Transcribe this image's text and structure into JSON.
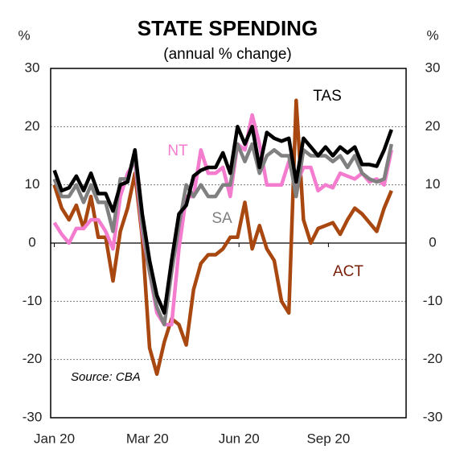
{
  "chart_data": {
    "type": "line",
    "title": "STATE SPENDING",
    "subtitle": "(annual % change)",
    "y_label": "%",
    "y2_label": "%",
    "annotation": "Source: CBA",
    "xlim": [
      -0.5,
      48
    ],
    "xticks": [
      {
        "value": 0,
        "label": "Jan 20"
      },
      {
        "value": 12.7,
        "label": "Mar 20"
      },
      {
        "value": 25.2,
        "label": "Jun 20"
      },
      {
        "value": 37.4,
        "label": "Sep 20"
      }
    ],
    "ylim": [
      -30,
      30
    ],
    "yticks": [
      -30,
      -20,
      -10,
      0,
      10,
      20,
      30
    ],
    "y2lim": [
      -30,
      30
    ],
    "y2ticks": [
      -30,
      -20,
      -10,
      0,
      10,
      20,
      30
    ],
    "grid": true,
    "series": [
      {
        "name": "ACT",
        "color": "#a8470f",
        "values": [
          10,
          6,
          4,
          6.5,
          2.5,
          8,
          1,
          1,
          -6.5,
          2,
          6,
          12,
          1,
          -18,
          -22.5,
          -17,
          -13,
          -14,
          -17.5,
          -8,
          -3.5,
          -2,
          -2,
          -1,
          1,
          1,
          7,
          -1,
          3,
          -1,
          -3,
          -10,
          -12,
          24.5,
          4,
          0,
          2.5,
          3,
          3.5,
          1.5,
          4,
          6,
          5,
          3.5,
          2,
          6,
          9
        ]
      },
      {
        "name": "NT",
        "color": "#f47ccf",
        "values": [
          3.5,
          1.5,
          0,
          2.5,
          2.5,
          4,
          4,
          2,
          -1,
          8,
          12,
          14,
          2,
          -5,
          -12,
          -14,
          -14,
          -1,
          8,
          8,
          16,
          12,
          12,
          13,
          8,
          17,
          16,
          22,
          17,
          10,
          10,
          10,
          14,
          10,
          13,
          13,
          9,
          10,
          9.5,
          12,
          11.5,
          11,
          12,
          10.5,
          11,
          10,
          16
        ]
      },
      {
        "name": "SA",
        "color": "#808080",
        "values": [
          11,
          8,
          8,
          10,
          7,
          10,
          7,
          7,
          2,
          11,
          11,
          15,
          3,
          -5,
          -11,
          -14,
          -5,
          3,
          10,
          8,
          10,
          8,
          8,
          10,
          10,
          17,
          14,
          17,
          12,
          15,
          16,
          15,
          15,
          8,
          16,
          15,
          15,
          15,
          14,
          15,
          13,
          15,
          12,
          11,
          10.5,
          11,
          17
        ]
      },
      {
        "name": "TAS",
        "color": "#000000",
        "values": [
          12.5,
          9,
          9.5,
          11.5,
          9,
          12,
          8.5,
          8.5,
          5.5,
          10,
          10.5,
          16,
          5,
          -3,
          -9,
          -12,
          -3,
          5,
          6.5,
          11.5,
          12.5,
          13,
          13,
          15.5,
          12,
          20,
          17,
          20,
          13,
          19,
          18,
          17.5,
          18,
          10.5,
          18,
          16.5,
          15,
          16.5,
          15,
          16.5,
          15.5,
          16.5,
          13.5,
          13.5,
          13.2,
          16,
          19.5
        ]
      }
    ]
  }
}
